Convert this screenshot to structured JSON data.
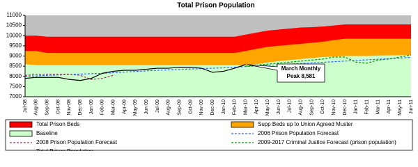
{
  "chart_data": {
    "type": "area-line",
    "title": "Total Prison Population",
    "categories": [
      "Jul-08",
      "Aug-08",
      "Sep-08",
      "Oct-08",
      "Nov-08",
      "Dec-08",
      "Jan-09",
      "Feb-09",
      "Mar-09",
      "Apr-09",
      "May-09",
      "Jun-09",
      "Jul-09",
      "Aug-09",
      "Sep-09",
      "Oct-09",
      "Nov-09",
      "Dec-09",
      "Jan-10",
      "Feb-10",
      "Mar-10",
      "Apr-10",
      "May-10",
      "Jun-10",
      "Jul-10",
      "Aug-10",
      "Sep-10",
      "Oct-10",
      "Nov-10",
      "Dec-10",
      "Jan-11",
      "Feb-11",
      "Mar-11",
      "Apr-11",
      "May-11",
      "Jun-11"
    ],
    "ylim": [
      7000,
      11000
    ],
    "yticks": [
      7000,
      7500,
      8000,
      8500,
      9000,
      9500,
      10000,
      10500,
      11000
    ],
    "series": [
      {
        "name": "Total Prison Beds",
        "kind": "area",
        "color": "#ff0000",
        "values": [
          10000,
          10000,
          9950,
          9950,
          9950,
          9950,
          9950,
          9950,
          9950,
          9950,
          9950,
          9950,
          9950,
          9950,
          9950,
          9950,
          9950,
          9950,
          9950,
          9950,
          10050,
          10150,
          10250,
          10300,
          10350,
          10400,
          10420,
          10450,
          10500,
          10550,
          10550,
          10550,
          10550,
          10550,
          10550,
          10550
        ]
      },
      {
        "name": "Supp Beds up to Union Agreed Muster",
        "kind": "area",
        "color": "#ffa500",
        "values": [
          9250,
          9250,
          9150,
          9150,
          9150,
          9150,
          9150,
          9150,
          9150,
          9150,
          9150,
          9150,
          9150,
          9150,
          9150,
          9150,
          9150,
          9150,
          9150,
          9150,
          9250,
          9350,
          9450,
          9500,
          9550,
          9600,
          9650,
          9700,
          9780,
          9850,
          9850,
          9850,
          9850,
          9850,
          9850,
          9850
        ]
      },
      {
        "name": "Baseline",
        "kind": "area",
        "color": "#ccffcc",
        "values": [
          8600,
          8550,
          8550,
          8550,
          8550,
          8550,
          8550,
          8550,
          8550,
          8550,
          8550,
          8550,
          8550,
          8550,
          8550,
          8550,
          8550,
          8550,
          8550,
          8550,
          8550,
          8600,
          8680,
          8750,
          8800,
          8850,
          8900,
          8950,
          8980,
          9000,
          9000,
          9000,
          9020,
          9030,
          9040,
          9050
        ]
      },
      {
        "name": "2006 Prison Population Forecast",
        "kind": "line",
        "dash": "3,2",
        "color": "#3366ff",
        "values": [
          8000,
          8020,
          8050,
          8070,
          8090,
          8110,
          8130,
          8150,
          8180,
          8210,
          8240,
          8270,
          8300,
          8320,
          8340,
          8360,
          8380,
          8400,
          8420,
          8450,
          8480,
          8510,
          8540,
          8570,
          8600,
          8630,
          8660,
          8690,
          8720,
          8750,
          8780,
          8810,
          8840,
          8870,
          8900,
          8930
        ]
      },
      {
        "name": "2008 Prison Population Forecast",
        "kind": "line",
        "dash": "3,2",
        "color": "#993366",
        "values": [
          8050,
          8080,
          8100,
          8100,
          8100,
          8050,
          7850,
          7900,
          8050,
          null,
          null,
          null,
          null,
          null,
          null,
          null,
          null,
          null,
          null,
          null,
          null,
          null,
          null,
          null,
          null,
          null,
          null,
          null,
          null,
          null,
          null,
          null,
          null,
          null,
          null,
          null
        ]
      },
      {
        "name": "2009-2017 Criminal Justice Forecast (prison population)",
        "kind": "line",
        "dash": "3,2",
        "color": "#009900",
        "values": [
          null,
          null,
          null,
          null,
          null,
          null,
          null,
          null,
          null,
          null,
          null,
          null,
          null,
          null,
          null,
          null,
          null,
          null,
          null,
          null,
          8500,
          8550,
          8600,
          8650,
          8700,
          8750,
          8800,
          8850,
          8950,
          8950,
          8700,
          8650,
          8800,
          8850,
          8950,
          9050
        ]
      },
      {
        "name": "Total Prison Population",
        "kind": "line",
        "dash": "",
        "color": "#000000",
        "values": [
          7900,
          7950,
          7950,
          7950,
          7850,
          7800,
          7900,
          8150,
          8250,
          8300,
          8300,
          8350,
          8400,
          8400,
          8450,
          8450,
          8400,
          8200,
          8250,
          8400,
          8581,
          null,
          null,
          null,
          null,
          null,
          null,
          null,
          null,
          null,
          null,
          null,
          null,
          null,
          null,
          null
        ]
      }
    ],
    "annotation": {
      "lines": [
        "March Monthly",
        "Peak 8,581"
      ],
      "index": 20,
      "series": 6
    }
  }
}
